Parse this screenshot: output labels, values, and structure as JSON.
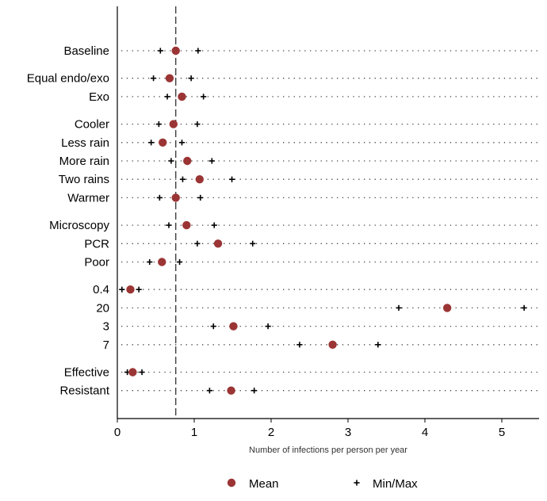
{
  "chart_data": {
    "type": "scatter",
    "title": "",
    "xlabel": "Number of infections per person per year",
    "ylabel": "",
    "xlim": [
      0,
      5.5
    ],
    "xticks": [
      0,
      1,
      2,
      3,
      4,
      5
    ],
    "reference_line_x": 0.76,
    "grid": "dotted horizontal per category",
    "legend_position": "bottom",
    "legend": [
      {
        "name": "Mean",
        "marker": "filled circle",
        "color": "#9b3535"
      },
      {
        "name": "Min/Max",
        "marker": "plus",
        "color": "#000000"
      }
    ],
    "groups": [
      [
        {
          "label": "Baseline",
          "mean": 0.76,
          "min": 0.56,
          "max": 1.05
        }
      ],
      [
        {
          "label": "Equal endo/exo",
          "mean": 0.68,
          "min": 0.47,
          "max": 0.96
        },
        {
          "label": "Exo",
          "mean": 0.84,
          "min": 0.65,
          "max": 1.12
        }
      ],
      [
        {
          "label": "Cooler",
          "mean": 0.73,
          "min": 0.54,
          "max": 1.04
        },
        {
          "label": "Less rain",
          "mean": 0.59,
          "min": 0.44,
          "max": 0.84
        },
        {
          "label": "More rain",
          "mean": 0.91,
          "min": 0.7,
          "max": 1.23
        },
        {
          "label": "Two rains",
          "mean": 1.07,
          "min": 0.85,
          "max": 1.49
        },
        {
          "label": "Warmer",
          "mean": 0.76,
          "min": 0.55,
          "max": 1.08
        }
      ],
      [
        {
          "label": "Microscopy",
          "mean": 0.9,
          "min": 0.67,
          "max": 1.26
        },
        {
          "label": "PCR",
          "mean": 1.31,
          "min": 1.04,
          "max": 1.76
        },
        {
          "label": "Poor",
          "mean": 0.58,
          "min": 0.42,
          "max": 0.81
        }
      ],
      [
        {
          "label": "0.4",
          "mean": 0.17,
          "min": 0.06,
          "max": 0.28
        },
        {
          "label": "20",
          "mean": 4.29,
          "min": 3.66,
          "max": 5.29
        },
        {
          "label": "3",
          "mean": 1.51,
          "min": 1.25,
          "max": 1.96
        },
        {
          "label": "7",
          "mean": 2.8,
          "min": 2.37,
          "max": 3.39
        }
      ],
      [
        {
          "label": "Effective",
          "mean": 0.2,
          "min": 0.13,
          "max": 0.32
        },
        {
          "label": "Resistant",
          "mean": 1.48,
          "min": 1.2,
          "max": 1.78
        }
      ]
    ]
  }
}
